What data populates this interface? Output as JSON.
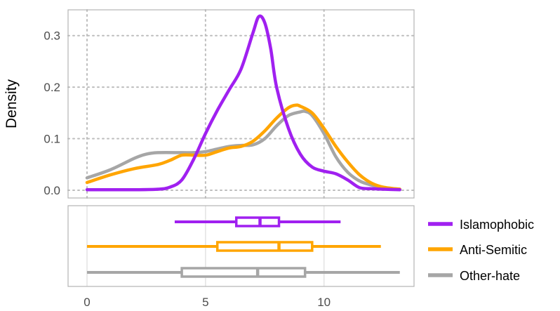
{
  "chart_data": {
    "type": "line",
    "subtype": "density-with-boxplots",
    "title": "",
    "xlabel": "",
    "ylabel": "Density",
    "xlim": [
      -0.8,
      13.8
    ],
    "ylim": [
      -0.015,
      0.35
    ],
    "x_ticks": [
      0,
      5,
      10
    ],
    "y_ticks": [
      0.0,
      0.1,
      0.2,
      0.3
    ],
    "x_tick_labels": [
      "0",
      "5",
      "10"
    ],
    "y_tick_labels": [
      "0.0",
      "0.1",
      "0.2",
      "0.3"
    ],
    "grid": true,
    "legend_position": "right",
    "series": [
      {
        "name": "Islamophobic",
        "color": "#a020f0",
        "x": [
          0,
          1,
          2,
          3,
          3.5,
          4,
          4.5,
          5,
          5.5,
          6,
          6.5,
          7,
          7.25,
          7.5,
          7.75,
          8,
          8.5,
          9,
          9.5,
          10,
          10.5,
          11,
          11.5,
          12,
          12.5,
          13.2
        ],
        "density": [
          0.001,
          0.001,
          0.001,
          0.002,
          0.006,
          0.02,
          0.06,
          0.11,
          0.155,
          0.195,
          0.235,
          0.305,
          0.337,
          0.325,
          0.275,
          0.2,
          0.12,
          0.07,
          0.045,
          0.037,
          0.032,
          0.02,
          0.005,
          0.003,
          0.002,
          0.001
        ],
        "box": {
          "min": 3.7,
          "q1": 6.3,
          "median": 7.3,
          "q3": 8.1,
          "max": 10.7
        }
      },
      {
        "name": "Anti-Semitic",
        "color": "#ffa500",
        "x": [
          0,
          1,
          2,
          3,
          3.5,
          4,
          4.5,
          5,
          5.5,
          6,
          6.5,
          7,
          7.5,
          8,
          8.5,
          8.8,
          9,
          9.5,
          10,
          10.5,
          11,
          11.5,
          12,
          12.5,
          13.2
        ],
        "density": [
          0.015,
          0.03,
          0.042,
          0.05,
          0.058,
          0.068,
          0.068,
          0.068,
          0.075,
          0.082,
          0.085,
          0.095,
          0.115,
          0.14,
          0.16,
          0.165,
          0.163,
          0.15,
          0.12,
          0.085,
          0.055,
          0.03,
          0.014,
          0.006,
          0.002
        ],
        "box": {
          "min": 0,
          "q1": 5.5,
          "median": 8.1,
          "q3": 9.5,
          "max": 12.4
        }
      },
      {
        "name": "Other-hate",
        "color": "#a6a6a6",
        "x": [
          0,
          1,
          2,
          2.5,
          3,
          4,
          4.5,
          5,
          5.5,
          6,
          6.5,
          7,
          7.5,
          8,
          8.5,
          9,
          9.2,
          9.5,
          10,
          10.5,
          11,
          11.5,
          12,
          12.5,
          13.2
        ],
        "density": [
          0.024,
          0.04,
          0.062,
          0.07,
          0.073,
          0.073,
          0.073,
          0.075,
          0.08,
          0.085,
          0.087,
          0.088,
          0.1,
          0.125,
          0.145,
          0.152,
          0.153,
          0.145,
          0.11,
          0.065,
          0.035,
          0.018,
          0.01,
          0.005,
          0.002
        ],
        "box": {
          "min": 0,
          "q1": 4.0,
          "median": 7.2,
          "q3": 9.2,
          "max": 13.2
        }
      }
    ]
  }
}
